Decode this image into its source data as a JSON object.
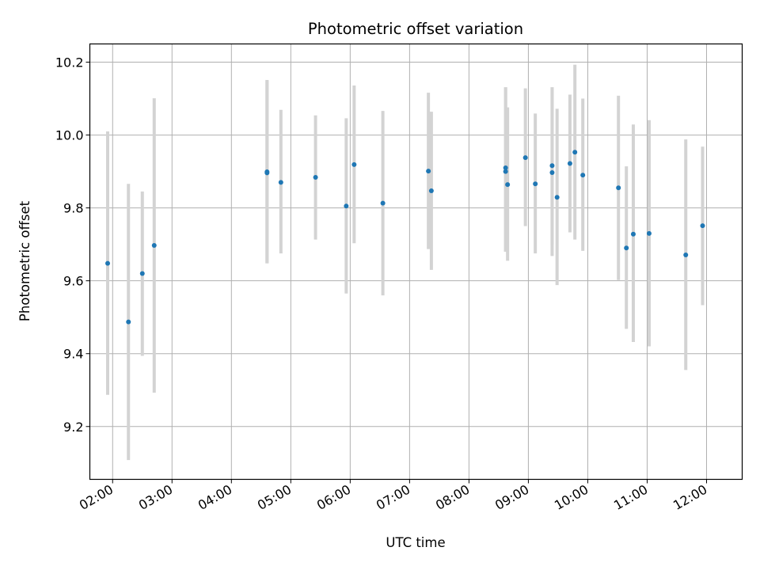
{
  "chart_data": {
    "type": "scatter",
    "title": "Photometric offset variation",
    "xlabel": "UTC time",
    "ylabel": "Photometric offset",
    "x_ticks": [
      "02:00",
      "03:00",
      "04:00",
      "05:00",
      "06:00",
      "07:00",
      "08:00",
      "09:00",
      "10:00",
      "11:00",
      "12:00"
    ],
    "y_ticks": [
      "9.2",
      "9.4",
      "9.6",
      "9.8",
      "10.0",
      "10.2"
    ],
    "xlim": [
      "01:37",
      "12:36"
    ],
    "ylim": [
      9.055,
      10.25
    ],
    "grid": true,
    "colors": {
      "points": "#1f77b4",
      "errorbars": "#d3d3d3",
      "grid": "#b0b0b0"
    },
    "series": [
      {
        "points": [
          {
            "t": "01:55",
            "y": 9.648,
            "lo": 9.287,
            "hi": 10.01
          },
          {
            "t": "02:16",
            "y": 9.487,
            "lo": 9.108,
            "hi": 9.866
          },
          {
            "t": "02:30",
            "y": 9.62,
            "lo": 9.394,
            "hi": 9.845
          },
          {
            "t": "02:42",
            "y": 9.697,
            "lo": 9.293,
            "hi": 10.101
          },
          {
            "t": "04:36",
            "y": 9.896,
            "lo": 9.648,
            "hi": 10.151
          },
          {
            "t": "04:36",
            "y": 9.899,
            "lo": 9.648,
            "hi": 10.151
          },
          {
            "t": "04:50",
            "y": 9.87,
            "lo": 9.675,
            "hi": 10.069
          },
          {
            "t": "05:25",
            "y": 9.884,
            "lo": 9.713,
            "hi": 10.054
          },
          {
            "t": "05:56",
            "y": 9.805,
            "lo": 9.565,
            "hi": 10.046
          },
          {
            "t": "06:04",
            "y": 9.919,
            "lo": 9.703,
            "hi": 10.136
          },
          {
            "t": "06:33",
            "y": 9.813,
            "lo": 9.56,
            "hi": 10.066
          },
          {
            "t": "07:19",
            "y": 9.901,
            "lo": 9.687,
            "hi": 10.116
          },
          {
            "t": "07:22",
            "y": 9.847,
            "lo": 9.63,
            "hi": 10.064
          },
          {
            "t": "08:37",
            "y": 9.91,
            "lo": 9.68,
            "hi": 10.131
          },
          {
            "t": "08:37",
            "y": 9.9,
            "lo": 9.68,
            "hi": 10.131
          },
          {
            "t": "08:39",
            "y": 9.864,
            "lo": 9.655,
            "hi": 10.076
          },
          {
            "t": "08:57",
            "y": 9.938,
            "lo": 9.75,
            "hi": 10.128
          },
          {
            "t": "09:07",
            "y": 9.866,
            "lo": 9.675,
            "hi": 10.059
          },
          {
            "t": "09:24",
            "y": 9.897,
            "lo": 9.668,
            "hi": 10.131
          },
          {
            "t": "09:24",
            "y": 9.916,
            "lo": 9.7,
            "hi": 10.131
          },
          {
            "t": "09:29",
            "y": 9.829,
            "lo": 9.588,
            "hi": 10.072
          },
          {
            "t": "09:42",
            "y": 9.922,
            "lo": 9.733,
            "hi": 10.111
          },
          {
            "t": "09:47",
            "y": 9.953,
            "lo": 9.713,
            "hi": 10.193
          },
          {
            "t": "09:55",
            "y": 9.89,
            "lo": 9.682,
            "hi": 10.1
          },
          {
            "t": "10:31",
            "y": 9.855,
            "lo": 9.602,
            "hi": 10.108
          },
          {
            "t": "10:39",
            "y": 9.69,
            "lo": 9.468,
            "hi": 9.914
          },
          {
            "t": "10:46",
            "y": 9.728,
            "lo": 9.432,
            "hi": 10.029
          },
          {
            "t": "11:02",
            "y": 9.73,
            "lo": 9.42,
            "hi": 10.041
          },
          {
            "t": "11:39",
            "y": 9.671,
            "lo": 9.355,
            "hi": 9.988
          },
          {
            "t": "11:56",
            "y": 9.751,
            "lo": 9.533,
            "hi": 9.968
          }
        ]
      }
    ]
  }
}
